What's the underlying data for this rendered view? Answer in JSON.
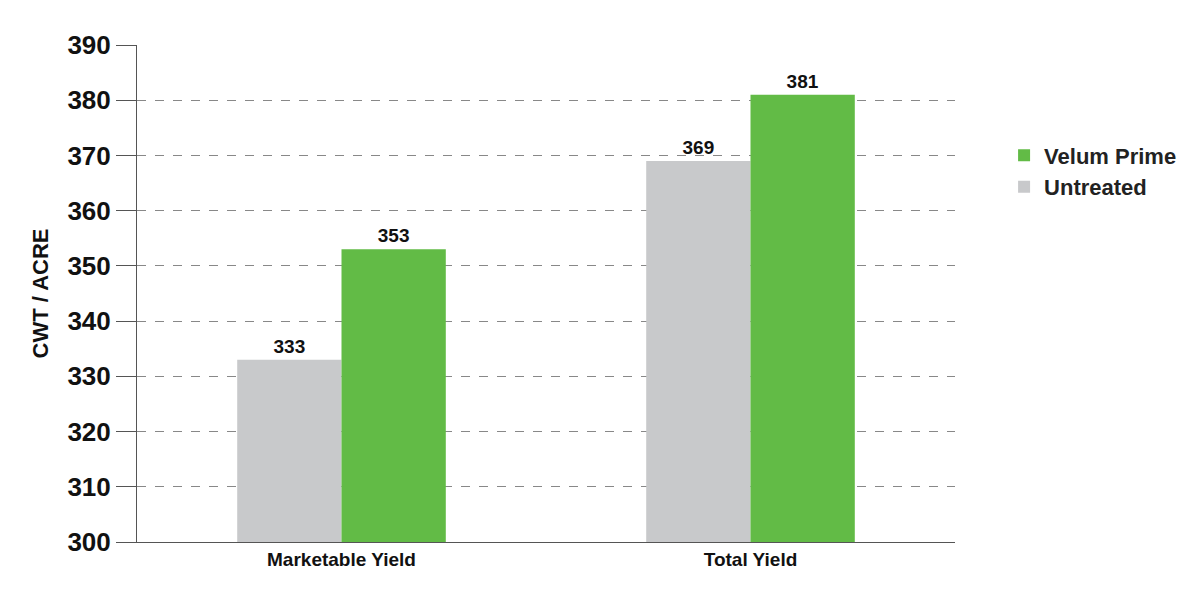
{
  "chart_data": {
    "type": "bar",
    "y_label": "CWT / ACRE",
    "categories": [
      "Marketable Yield",
      "Total Yield"
    ],
    "series": [
      {
        "name": "Untreated",
        "color": "#c8c9cb",
        "values": [
          333,
          369
        ]
      },
      {
        "name": "Velum Prime",
        "color": "#62bb46",
        "values": [
          353,
          381
        ]
      }
    ],
    "ylim": [
      300,
      390
    ],
    "yticks": [
      300,
      310,
      320,
      330,
      340,
      350,
      360,
      370,
      380,
      390
    ],
    "grid": true,
    "legend": "right",
    "data_labels": true
  }
}
